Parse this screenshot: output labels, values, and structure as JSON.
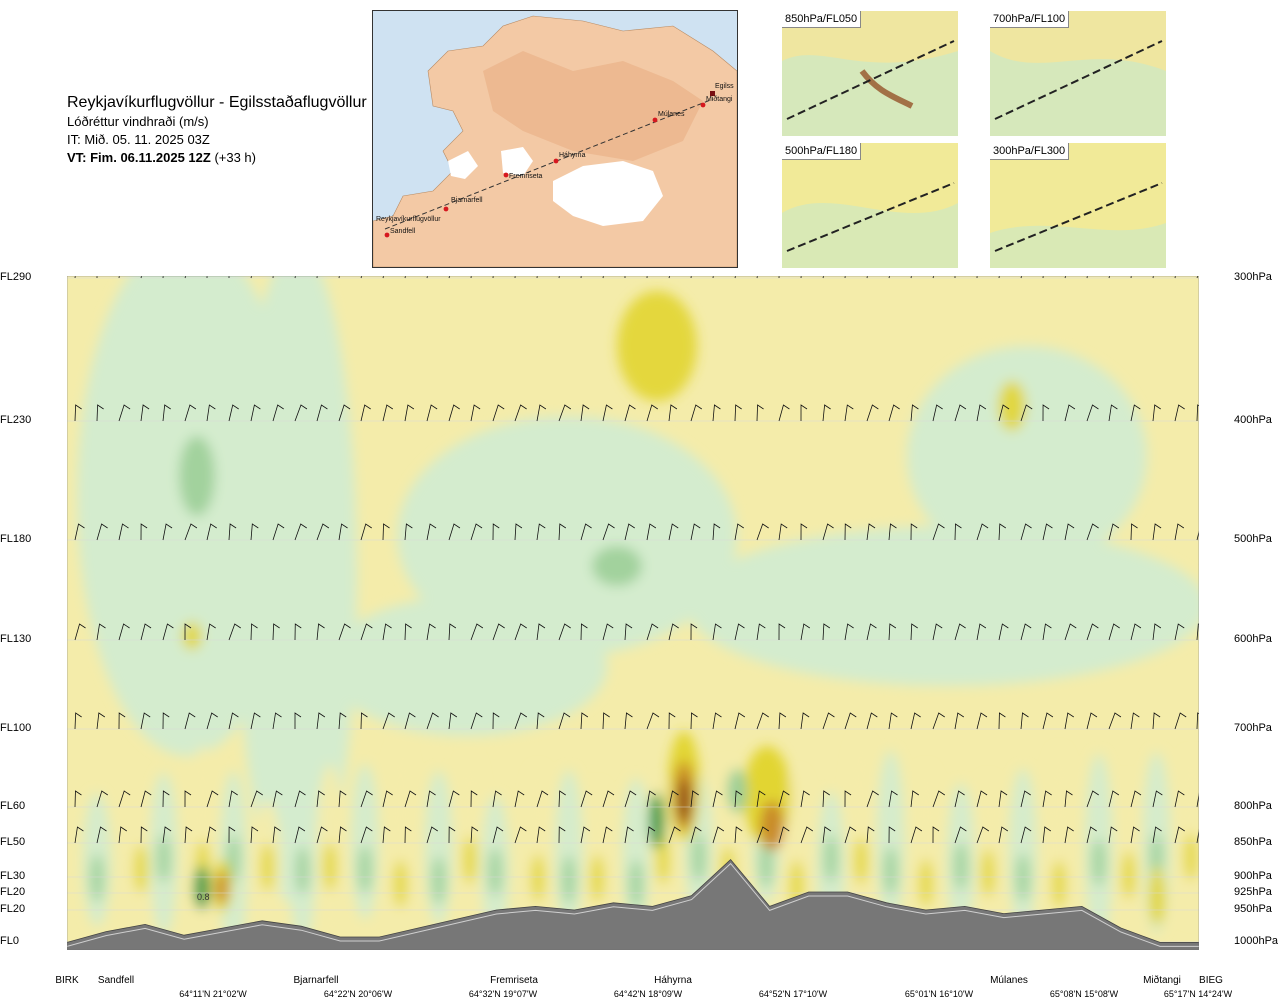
{
  "header": {
    "route": "Reykjavíkurflugvöllur - Egilsstaðaflugvöllur",
    "field": "Lóðréttur vindhraði (m/s)",
    "issue": "IT: Mið. 05. 11. 2025 03Z",
    "valid": "VT: Fim. 06.11.2025 12Z",
    "lead": "(+33 h)"
  },
  "map": {
    "stations": [
      "Reykjavíkurflugvöllur",
      "Sandfell",
      "Bjarnarfell",
      "Fremriseta",
      "Háhyrna",
      "Múlanes",
      "Miðtangi",
      "Egilss"
    ]
  },
  "thumbnails": [
    {
      "label": "850hPa/FL050"
    },
    {
      "label": "700hPa/FL100"
    },
    {
      "label": "500hPa/FL180"
    },
    {
      "label": "300hPa/FL300"
    }
  ],
  "chart_data": {
    "type": "heatmap",
    "title": "Lóðréttur vindhraði (m/s)",
    "left_axis": [
      "FL290",
      "FL230",
      "FL180",
      "FL130",
      "FL100",
      "FL60",
      "FL50",
      "FL30",
      "FL20",
      "FL20",
      "FL0"
    ],
    "right_axis": [
      "300hPa",
      "400hPa",
      "500hPa",
      "600hPa",
      "700hPa",
      "800hPa",
      "850hPa",
      "900hPa",
      "925hPa",
      "950hPa",
      "1000hPa"
    ],
    "levels_hpa": [
      300,
      400,
      500,
      600,
      700,
      800,
      850,
      900,
      925,
      950,
      1000
    ],
    "waypoints": [
      "BIRK",
      "Sandfell",
      "Bjarnarfell",
      "Fremriseta",
      "Háhyrna",
      "Múlanes",
      "Miðtangi",
      "BIEG"
    ],
    "coordinates": [
      "64°11'N 21°02'W",
      "64°22'N 20°06'W",
      "64°32'N 19°07'W",
      "64°42'N 18°09'W",
      "64°52'N 17°10'W",
      "65°01'N 16°10'W",
      "65°08'N 15°08'W",
      "65°17'N 14°24'W"
    ],
    "point_label": "0.8",
    "terrain_profile_fraction": [
      0.02,
      0.08,
      0.12,
      0.06,
      0.1,
      0.14,
      0.11,
      0.05,
      0.05,
      0.1,
      0.15,
      0.2,
      0.22,
      0.2,
      0.24,
      0.22,
      0.28,
      0.48,
      0.22,
      0.3,
      0.3,
      0.24,
      0.2,
      0.22,
      0.18,
      0.2,
      0.22,
      0.1,
      0.02,
      0.02
    ],
    "colors": {
      "down_weak": "#d4ecce",
      "down_mod": "#9ccf98",
      "down_strong": "#3d9a43",
      "up_weak": "#f4ecaa",
      "up_mod": "#e2d532",
      "up_strong": "#c98a2a",
      "up_max": "#8b3f14",
      "terrain": "#777777"
    }
  }
}
